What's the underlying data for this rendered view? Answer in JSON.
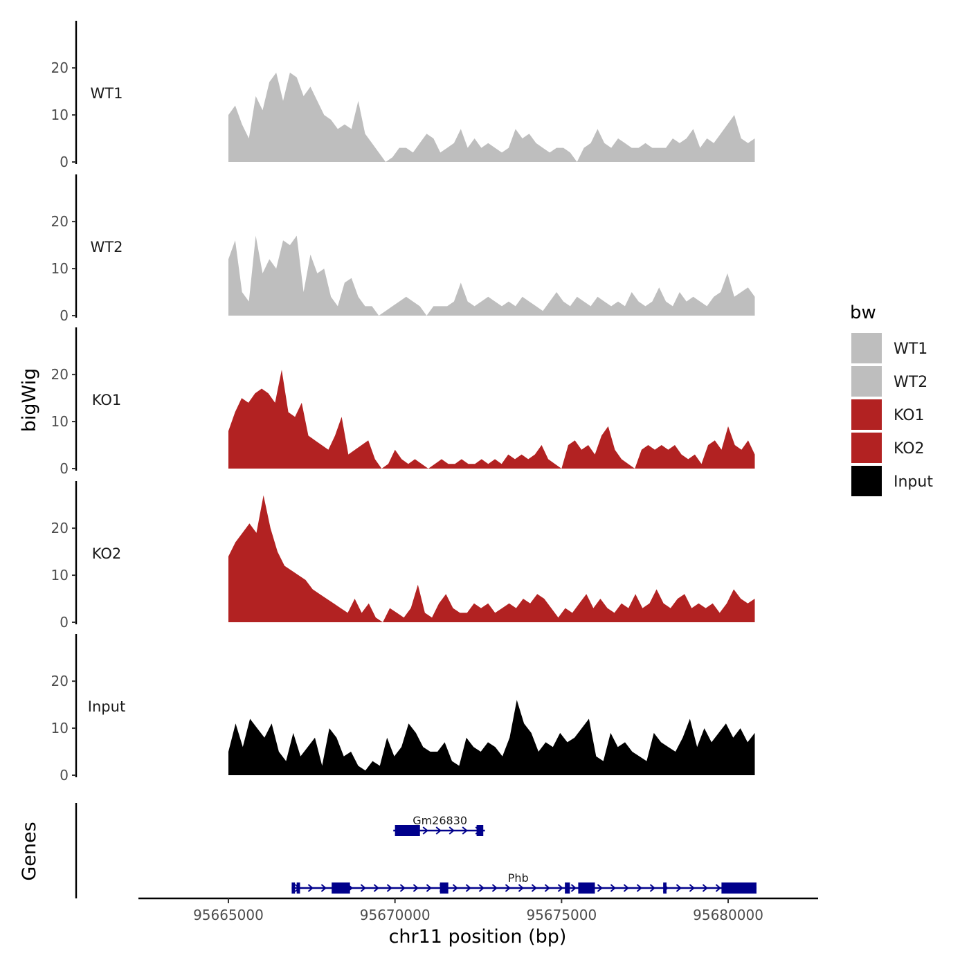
{
  "chart_data": {
    "type": "area",
    "title": "",
    "xlabel": "chr11 position (bp)",
    "ylabel": "bigWig",
    "genes_label": "Genes",
    "xlim": [
      95662300,
      95682700
    ],
    "ylim": [
      0,
      29
    ],
    "yticks": [
      0,
      10,
      20
    ],
    "xticks": [
      {
        "value": 95665000,
        "label": "95665000"
      },
      {
        "value": 95670000,
        "label": "95670000"
      },
      {
        "value": 95675000,
        "label": "95675000"
      },
      {
        "value": 95680000,
        "label": "95680000"
      }
    ],
    "legend": {
      "title": "bw",
      "position": "right",
      "entries": [
        {
          "label": "WT1",
          "color": "#bebebe"
        },
        {
          "label": "WT2",
          "color": "#bebebe"
        },
        {
          "label": "KO1",
          "color": "#b22222"
        },
        {
          "label": "KO2",
          "color": "#b22222"
        },
        {
          "label": "Input",
          "color": "#000000"
        }
      ]
    },
    "series": [
      {
        "name": "WT1",
        "label": "WT1",
        "color": "#bebebe",
        "x_start": 95665000,
        "x_end": 95680800,
        "values": [
          10,
          12,
          8,
          5,
          14,
          11,
          17,
          19,
          13,
          19,
          18,
          14,
          16,
          13,
          10,
          9,
          7,
          8,
          7,
          13,
          6,
          4,
          2,
          0,
          1,
          3,
          3,
          2,
          4,
          6,
          5,
          2,
          3,
          4,
          7,
          3,
          5,
          3,
          4,
          3,
          2,
          3,
          7,
          5,
          6,
          4,
          3,
          2,
          3,
          3,
          2,
          0,
          3,
          4,
          7,
          4,
          3,
          5,
          4,
          3,
          3,
          4,
          3,
          3,
          3,
          5,
          4,
          5,
          7,
          3,
          5,
          4,
          6,
          8,
          10,
          5,
          4,
          5
        ]
      },
      {
        "name": "WT2",
        "label": "WT2",
        "color": "#bebebe",
        "x_start": 95665000,
        "x_end": 95680800,
        "values": [
          12,
          16,
          5,
          3,
          17,
          9,
          12,
          10,
          16,
          15,
          17,
          5,
          13,
          9,
          10,
          4,
          2,
          7,
          8,
          4,
          2,
          2,
          0,
          1,
          2,
          3,
          4,
          3,
          2,
          0,
          2,
          2,
          2,
          3,
          7,
          3,
          2,
          3,
          4,
          3,
          2,
          3,
          2,
          4,
          3,
          2,
          1,
          3,
          5,
          3,
          2,
          4,
          3,
          2,
          4,
          3,
          2,
          3,
          2,
          5,
          3,
          2,
          3,
          6,
          3,
          2,
          5,
          3,
          4,
          3,
          2,
          4,
          5,
          9,
          4,
          5,
          6,
          4
        ]
      },
      {
        "name": "KO1",
        "label": "KO1",
        "color": "#b22222",
        "x_start": 95665000,
        "x_end": 95680800,
        "values": [
          8,
          12,
          15,
          14,
          16,
          17,
          16,
          14,
          21,
          12,
          11,
          14,
          7,
          6,
          5,
          4,
          7,
          11,
          3,
          4,
          5,
          6,
          2,
          0,
          1,
          4,
          2,
          1,
          2,
          1,
          0,
          1,
          2,
          1,
          1,
          2,
          1,
          1,
          2,
          1,
          2,
          1,
          3,
          2,
          3,
          2,
          3,
          5,
          2,
          1,
          0,
          5,
          6,
          4,
          5,
          3,
          7,
          9,
          4,
          2,
          1,
          0,
          4,
          5,
          4,
          5,
          4,
          5,
          3,
          2,
          3,
          1,
          5,
          6,
          4,
          9,
          5,
          4,
          6,
          3
        ]
      },
      {
        "name": "KO2",
        "label": "KO2",
        "color": "#b22222",
        "x_start": 95665000,
        "x_end": 95680800,
        "values": [
          14,
          17,
          19,
          21,
          19,
          27,
          20,
          15,
          12,
          11,
          10,
          9,
          7,
          6,
          5,
          4,
          3,
          2,
          5,
          2,
          4,
          1,
          0,
          3,
          2,
          1,
          3,
          8,
          2,
          1,
          4,
          6,
          3,
          2,
          2,
          4,
          3,
          4,
          2,
          3,
          4,
          3,
          5,
          4,
          6,
          5,
          3,
          1,
          3,
          2,
          4,
          6,
          3,
          5,
          3,
          2,
          4,
          3,
          6,
          3,
          4,
          7,
          4,
          3,
          5,
          6,
          3,
          4,
          3,
          4,
          2,
          4,
          7,
          5,
          4,
          5
        ]
      },
      {
        "name": "Input",
        "label": "Input",
        "color": "#000000",
        "x_start": 95665000,
        "x_end": 95680800,
        "values": [
          5,
          11,
          6,
          12,
          10,
          8,
          11,
          5,
          3,
          9,
          4,
          6,
          8,
          2,
          10,
          8,
          4,
          5,
          2,
          1,
          3,
          2,
          8,
          4,
          6,
          11,
          9,
          6,
          5,
          5,
          7,
          3,
          2,
          8,
          6,
          5,
          7,
          6,
          4,
          8,
          16,
          11,
          9,
          5,
          7,
          6,
          9,
          7,
          8,
          10,
          12,
          4,
          3,
          9,
          6,
          7,
          5,
          4,
          3,
          9,
          7,
          6,
          5,
          8,
          12,
          6,
          10,
          7,
          9,
          11,
          8,
          10,
          7,
          9
        ]
      }
    ],
    "genes": [
      {
        "name": "Gm26830",
        "label": "Gm26830",
        "row": 0,
        "start": 95669950,
        "end": 95672700,
        "exons": [
          [
            95670000,
            95670750
          ],
          [
            95672450,
            95672650
          ]
        ],
        "label_pos": 95671350
      },
      {
        "name": "Phb",
        "label": "Phb",
        "row": 1,
        "start": 95666900,
        "end": 95680850,
        "exons": [
          [
            95666900,
            95667000
          ],
          [
            95667050,
            95667150
          ],
          [
            95668100,
            95668650
          ],
          [
            95671350,
            95671600
          ],
          [
            95675100,
            95675250
          ],
          [
            95675500,
            95676000
          ],
          [
            95678050,
            95678150
          ],
          [
            95679800,
            95680850
          ]
        ],
        "label_pos": 95673700
      }
    ]
  }
}
